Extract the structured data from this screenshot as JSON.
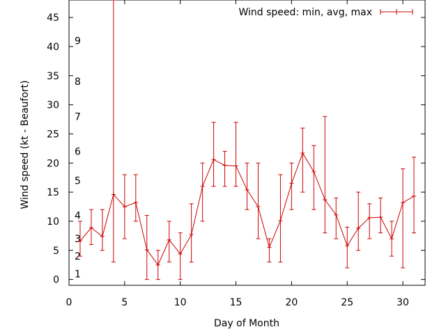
{
  "chart_data": {
    "type": "line",
    "title": "",
    "xlabel": "Day of Month",
    "ylabel": "Wind speed (kt - Beaufort)",
    "xlim": [
      0,
      32
    ],
    "ylim": [
      -1,
      48
    ],
    "xticks": [
      0,
      5,
      10,
      15,
      20,
      25,
      30
    ],
    "yticks": [
      0,
      5,
      10,
      15,
      20,
      25,
      30,
      35,
      40,
      45
    ],
    "grid": false,
    "legend": {
      "position": "top-right",
      "entry": "Wind speed: min, avg, max"
    },
    "series": [
      {
        "name": "Wind speed: min, avg, max",
        "color": "#cc0000",
        "x": [
          1,
          2,
          3,
          4,
          5,
          6,
          7,
          8,
          9,
          10,
          11,
          12,
          13,
          14,
          15,
          16,
          17,
          18,
          19,
          20,
          21,
          22,
          23,
          24,
          25,
          26,
          27,
          28,
          29,
          30,
          31
        ],
        "avg": [
          6.6,
          8.9,
          7.4,
          14.6,
          12.5,
          13.2,
          5.1,
          2.5,
          6.8,
          4.4,
          7.7,
          16.0,
          20.6,
          19.6,
          19.5,
          15.4,
          12.5,
          5.5,
          10.1,
          16.5,
          21.7,
          18.5,
          13.7,
          11.1,
          5.8,
          8.8,
          10.6,
          10.7,
          7.0,
          13.2,
          14.3
        ],
        "min": [
          4,
          6,
          5,
          3,
          7,
          10,
          0,
          0,
          3,
          0,
          3,
          10,
          16,
          16,
          16,
          12,
          7,
          3,
          3,
          12,
          15,
          12,
          8,
          7,
          2,
          5,
          7,
          8,
          4,
          2,
          8
        ],
        "max": [
          10,
          12,
          12,
          48,
          18,
          18,
          11,
          5,
          10,
          8,
          13,
          20,
          27,
          22,
          27,
          20,
          20,
          7,
          18,
          20,
          26,
          23,
          28,
          14,
          9,
          15,
          13,
          14,
          10,
          19,
          21
        ]
      }
    ],
    "beaufort_scale": [
      {
        "force": "1",
        "kt": 1
      },
      {
        "force": "2",
        "kt": 4
      },
      {
        "force": "3",
        "kt": 7
      },
      {
        "force": "4",
        "kt": 11
      },
      {
        "force": "5",
        "kt": 17
      },
      {
        "force": "6",
        "kt": 22
      },
      {
        "force": "7",
        "kt": 28
      },
      {
        "force": "8",
        "kt": 34
      },
      {
        "force": "9",
        "kt": 41
      }
    ]
  }
}
